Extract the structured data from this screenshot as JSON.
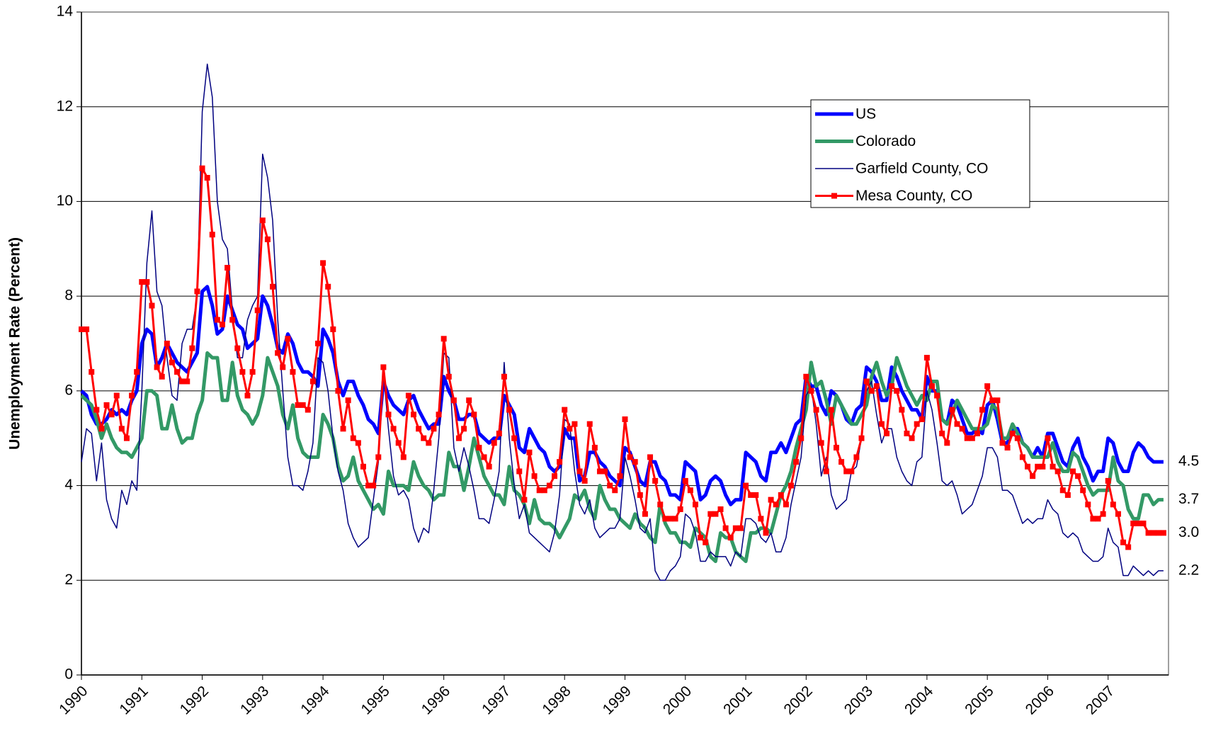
{
  "chart_data": {
    "type": "line",
    "ylabel": "Unemployment Rate (Percent)",
    "categories": [
      "1990",
      null,
      null,
      null,
      null,
      null,
      null,
      null,
      null,
      null,
      null,
      null,
      "1991",
      null,
      null,
      null,
      null,
      null,
      null,
      null,
      null,
      null,
      null,
      null,
      "1992",
      null,
      null,
      null,
      null,
      null,
      null,
      null,
      null,
      null,
      null,
      null,
      "1993",
      null,
      null,
      null,
      null,
      null,
      null,
      null,
      null,
      null,
      null,
      null,
      "1994",
      null,
      null,
      null,
      null,
      null,
      null,
      null,
      null,
      null,
      null,
      null,
      "1995",
      null,
      null,
      null,
      null,
      null,
      null,
      null,
      null,
      null,
      null,
      null,
      "1996",
      null,
      null,
      null,
      null,
      null,
      null,
      null,
      null,
      null,
      null,
      null,
      "1997",
      null,
      null,
      null,
      null,
      null,
      null,
      null,
      null,
      null,
      null,
      null,
      "1998",
      null,
      null,
      null,
      null,
      null,
      null,
      null,
      null,
      null,
      null,
      null,
      "1999",
      null,
      null,
      null,
      null,
      null,
      null,
      null,
      null,
      null,
      null,
      null,
      "2000",
      null,
      null,
      null,
      null,
      null,
      null,
      null,
      null,
      null,
      null,
      null,
      "2001",
      null,
      null,
      null,
      null,
      null,
      null,
      null,
      null,
      null,
      null,
      null,
      "2002",
      null,
      null,
      null,
      null,
      null,
      null,
      null,
      null,
      null,
      null,
      null,
      "2003",
      null,
      null,
      null,
      null,
      null,
      null,
      null,
      null,
      null,
      null,
      null,
      "2004",
      null,
      null,
      null,
      null,
      null,
      null,
      null,
      null,
      null,
      null,
      null,
      "2005",
      null,
      null,
      null,
      null,
      null,
      null,
      null,
      null,
      null,
      null,
      null,
      "2006",
      null,
      null,
      null,
      null,
      null,
      null,
      null,
      null,
      null,
      null,
      null,
      "2007",
      null,
      null,
      null,
      null,
      null,
      null,
      null,
      null,
      null,
      null,
      null
    ],
    "ylim": [
      0,
      14
    ],
    "yticks": [
      0,
      2,
      4,
      6,
      8,
      10,
      12,
      14
    ],
    "grid": true,
    "legend": "upper right",
    "series": [
      {
        "name": "US",
        "color": "#0000ff",
        "width": 5,
        "marker": false,
        "end_label": "4.5",
        "values": [
          6.0,
          5.9,
          5.5,
          5.3,
          5.3,
          5.4,
          5.6,
          5.5,
          5.6,
          5.5,
          5.8,
          6.0,
          7.0,
          7.3,
          7.2,
          6.5,
          6.7,
          7.0,
          6.8,
          6.6,
          6.5,
          6.4,
          6.6,
          6.8,
          8.1,
          8.2,
          7.8,
          7.2,
          7.3,
          8.0,
          7.7,
          7.4,
          7.3,
          6.9,
          7.0,
          7.1,
          8.0,
          7.8,
          7.4,
          6.9,
          6.8,
          7.2,
          7.0,
          6.6,
          6.4,
          6.4,
          6.3,
          6.1,
          7.3,
          7.1,
          6.8,
          6.2,
          5.9,
          6.2,
          6.2,
          5.9,
          5.7,
          5.4,
          5.3,
          5.1,
          6.2,
          5.9,
          5.7,
          5.6,
          5.5,
          5.8,
          5.9,
          5.6,
          5.4,
          5.2,
          5.3,
          5.3,
          6.3,
          6.0,
          5.8,
          5.4,
          5.4,
          5.5,
          5.5,
          5.1,
          5.0,
          4.9,
          5.0,
          5.0,
          5.9,
          5.7,
          5.5,
          4.8,
          4.7,
          5.2,
          5.0,
          4.8,
          4.7,
          4.4,
          4.3,
          4.4,
          5.2,
          5.0,
          5.0,
          4.1,
          4.2,
          4.7,
          4.7,
          4.5,
          4.4,
          4.2,
          4.1,
          4.0,
          4.8,
          4.7,
          4.4,
          4.1,
          4.0,
          4.5,
          4.5,
          4.2,
          4.1,
          3.8,
          3.8,
          3.7,
          4.5,
          4.4,
          4.3,
          3.7,
          3.8,
          4.1,
          4.2,
          4.1,
          3.8,
          3.6,
          3.7,
          3.7,
          4.7,
          4.6,
          4.5,
          4.2,
          4.1,
          4.7,
          4.7,
          4.9,
          4.7,
          5.0,
          5.3,
          5.4,
          6.3,
          6.1,
          6.1,
          5.7,
          5.5,
          6.0,
          5.9,
          5.7,
          5.4,
          5.3,
          5.6,
          5.7,
          6.5,
          6.4,
          6.2,
          5.8,
          5.8,
          6.5,
          6.3,
          6.0,
          5.8,
          5.6,
          5.6,
          5.4,
          6.3,
          6.0,
          6.0,
          5.4,
          5.3,
          5.8,
          5.7,
          5.4,
          5.1,
          5.1,
          5.2,
          5.1,
          5.7,
          5.8,
          5.4,
          4.9,
          4.9,
          5.2,
          5.2,
          4.9,
          4.8,
          4.6,
          4.8,
          4.6,
          5.1,
          5.1,
          4.8,
          4.5,
          4.4,
          4.8,
          5.0,
          4.6,
          4.4,
          4.1,
          4.3,
          4.3,
          5.0,
          4.9,
          4.5,
          4.3,
          4.3,
          4.7,
          4.9,
          4.8,
          4.6,
          4.5,
          4.5,
          4.5
        ]
      },
      {
        "name": "Colorado",
        "color": "#339966",
        "width": 5,
        "marker": false,
        "end_label": "3.7",
        "values": [
          5.9,
          5.8,
          5.7,
          5.4,
          5.0,
          5.3,
          5.0,
          4.8,
          4.7,
          4.7,
          4.6,
          4.8,
          5.0,
          6.0,
          6.0,
          5.9,
          5.2,
          5.2,
          5.7,
          5.2,
          4.9,
          5.0,
          5.0,
          5.5,
          5.8,
          6.8,
          6.7,
          6.7,
          5.8,
          5.8,
          6.6,
          5.9,
          5.6,
          5.5,
          5.3,
          5.5,
          5.9,
          6.7,
          6.4,
          6.1,
          5.5,
          5.2,
          5.7,
          5.0,
          4.7,
          4.6,
          4.6,
          4.6,
          5.5,
          5.3,
          5.0,
          4.4,
          4.1,
          4.2,
          4.6,
          4.1,
          3.9,
          3.7,
          3.5,
          3.6,
          3.4,
          4.3,
          4.0,
          4.0,
          4.0,
          3.9,
          4.5,
          4.2,
          4.0,
          3.9,
          3.7,
          3.8,
          3.8,
          4.7,
          4.4,
          4.4,
          3.9,
          4.4,
          5.0,
          4.6,
          4.2,
          4.0,
          3.8,
          3.8,
          3.6,
          4.4,
          3.9,
          3.8,
          3.6,
          3.2,
          3.7,
          3.3,
          3.2,
          3.2,
          3.1,
          2.9,
          3.1,
          3.3,
          3.8,
          3.7,
          3.9,
          3.5,
          3.3,
          4.0,
          3.7,
          3.5,
          3.5,
          3.3,
          3.2,
          3.1,
          3.4,
          3.2,
          3.1,
          2.9,
          2.8,
          3.6,
          3.2,
          3.0,
          3.0,
          2.8,
          2.8,
          2.7,
          3.1,
          3.0,
          2.9,
          2.5,
          2.4,
          3.0,
          2.9,
          2.9,
          2.6,
          2.5,
          2.4,
          3.0,
          3.0,
          3.1,
          3.1,
          3.0,
          3.4,
          3.8,
          4.0,
          4.3,
          4.8,
          5.2,
          5.6,
          6.6,
          6.1,
          6.2,
          5.8,
          5.3,
          5.9,
          5.7,
          5.5,
          5.3,
          5.3,
          5.5,
          5.7,
          6.3,
          6.6,
          6.2,
          5.9,
          6.1,
          6.7,
          6.4,
          6.1,
          5.9,
          5.7,
          5.9,
          5.8,
          6.2,
          6.2,
          5.4,
          5.3,
          5.5,
          5.8,
          5.6,
          5.4,
          5.2,
          5.2,
          5.2,
          5.3,
          5.7,
          5.6,
          5.0,
          5.0,
          5.3,
          5.1,
          4.9,
          4.8,
          4.6,
          4.6,
          4.6,
          4.6,
          4.9,
          4.5,
          4.3,
          4.3,
          4.7,
          4.6,
          4.3,
          4.0,
          3.8,
          3.9,
          3.9,
          3.9,
          4.6,
          4.1,
          4.0,
          3.5,
          3.3,
          3.3,
          3.8,
          3.8,
          3.6,
          3.7,
          3.7
        ]
      },
      {
        "name": "Garfield County, CO",
        "color": "#000080",
        "width": 1.5,
        "marker": false,
        "end_label": "2.2",
        "values": [
          4.5,
          5.2,
          5.1,
          4.1,
          4.9,
          3.7,
          3.3,
          3.1,
          3.9,
          3.6,
          4.1,
          3.9,
          6.0,
          8.7,
          9.8,
          8.1,
          7.8,
          6.7,
          5.9,
          5.8,
          7.0,
          7.3,
          7.3,
          8.0,
          11.9,
          12.9,
          12.2,
          10.0,
          9.2,
          9.0,
          7.7,
          6.7,
          6.7,
          7.5,
          7.8,
          8.0,
          11.0,
          10.5,
          9.6,
          7.5,
          6.0,
          4.6,
          4.0,
          4.0,
          3.9,
          4.3,
          4.9,
          6.7,
          6.6,
          6.0,
          5.0,
          4.3,
          3.9,
          3.2,
          2.9,
          2.7,
          2.8,
          2.9,
          3.7,
          4.5,
          6.4,
          5.2,
          4.2,
          3.8,
          3.9,
          3.7,
          3.1,
          2.8,
          3.1,
          3.0,
          3.9,
          5.0,
          6.8,
          6.7,
          4.8,
          4.3,
          4.8,
          4.4,
          3.9,
          3.3,
          3.3,
          3.2,
          3.7,
          4.3,
          6.6,
          5.0,
          4.0,
          3.3,
          3.6,
          3.0,
          2.9,
          2.8,
          2.7,
          2.6,
          3.0,
          3.8,
          5.4,
          5.3,
          4.3,
          3.6,
          3.4,
          3.7,
          3.1,
          2.9,
          3.0,
          3.1,
          3.1,
          3.3,
          4.6,
          4.2,
          3.7,
          3.1,
          3.0,
          3.3,
          2.2,
          2.0,
          2.0,
          2.2,
          2.3,
          2.5,
          3.4,
          3.3,
          3.0,
          2.4,
          2.4,
          2.6,
          2.5,
          2.5,
          2.5,
          2.3,
          2.6,
          2.5,
          3.3,
          3.3,
          3.2,
          2.9,
          2.8,
          3.0,
          2.6,
          2.6,
          2.9,
          3.6,
          4.1,
          4.6,
          5.9,
          6.1,
          5.3,
          4.2,
          4.6,
          3.8,
          3.5,
          3.6,
          3.7,
          4.3,
          4.4,
          5.0,
          6.0,
          6.2,
          5.5,
          4.9,
          5.2,
          5.2,
          4.6,
          4.3,
          4.1,
          4.0,
          4.5,
          4.6,
          6.0,
          5.6,
          4.9,
          4.1,
          4.0,
          4.1,
          3.8,
          3.4,
          3.5,
          3.6,
          3.9,
          4.2,
          4.8,
          4.8,
          4.6,
          3.9,
          3.9,
          3.8,
          3.5,
          3.2,
          3.3,
          3.2,
          3.3,
          3.3,
          3.7,
          3.5,
          3.4,
          3.0,
          2.9,
          3.0,
          2.9,
          2.6,
          2.5,
          2.4,
          2.4,
          2.5,
          3.1,
          2.8,
          2.7,
          2.1,
          2.1,
          2.3,
          2.2,
          2.1,
          2.2,
          2.1,
          2.2,
          2.2
        ]
      },
      {
        "name": "Mesa County, CO",
        "color": "#ff0000",
        "width": 3,
        "marker": true,
        "end_label": "3.0",
        "values": [
          7.3,
          7.3,
          6.4,
          5.6,
          5.2,
          5.7,
          5.5,
          5.9,
          5.2,
          5.0,
          5.9,
          6.4,
          8.3,
          8.3,
          7.8,
          6.5,
          6.3,
          7.0,
          6.6,
          6.4,
          6.2,
          6.2,
          6.9,
          8.1,
          10.7,
          10.5,
          9.3,
          7.5,
          7.4,
          8.6,
          7.5,
          6.9,
          6.4,
          5.9,
          6.4,
          7.7,
          9.6,
          9.2,
          8.2,
          6.8,
          6.5,
          7.1,
          6.4,
          5.7,
          5.7,
          5.6,
          6.2,
          7.0,
          8.7,
          8.2,
          7.3,
          6.0,
          5.2,
          5.8,
          5.0,
          4.9,
          4.4,
          4.0,
          4.0,
          4.6,
          6.5,
          5.5,
          5.2,
          4.9,
          4.6,
          5.9,
          5.5,
          5.2,
          5.0,
          4.9,
          5.2,
          5.5,
          7.1,
          6.3,
          5.8,
          5.0,
          5.2,
          5.8,
          5.5,
          4.8,
          4.6,
          4.4,
          4.9,
          5.1,
          6.3,
          5.6,
          5.0,
          4.3,
          3.7,
          4.7,
          4.2,
          3.9,
          3.9,
          4.0,
          4.2,
          4.5,
          5.6,
          5.2,
          5.3,
          4.3,
          4.1,
          5.3,
          4.8,
          4.3,
          4.3,
          4.0,
          3.9,
          4.2,
          5.4,
          4.6,
          4.5,
          3.8,
          3.4,
          4.6,
          4.1,
          3.6,
          3.3,
          3.3,
          3.3,
          3.5,
          4.1,
          3.9,
          3.6,
          2.9,
          2.8,
          3.4,
          3.4,
          3.5,
          3.1,
          2.9,
          3.1,
          3.1,
          4.0,
          3.8,
          3.8,
          3.3,
          3.0,
          3.7,
          3.6,
          3.8,
          3.6,
          4.0,
          4.5,
          5.0,
          6.3,
          6.0,
          5.6,
          4.9,
          4.3,
          5.6,
          4.8,
          4.5,
          4.3,
          4.3,
          4.6,
          5.0,
          6.2,
          6.0,
          6.1,
          5.3,
          5.1,
          6.1,
          6.0,
          5.6,
          5.1,
          5.0,
          5.3,
          5.4,
          6.7,
          6.1,
          5.9,
          5.1,
          4.9,
          5.6,
          5.3,
          5.2,
          5.0,
          5.0,
          5.1,
          5.6,
          6.1,
          5.8,
          5.8,
          4.9,
          4.8,
          5.1,
          5.0,
          4.6,
          4.4,
          4.2,
          4.4,
          4.4,
          5.0,
          4.4,
          4.3,
          3.9,
          3.8,
          4.3,
          4.2,
          3.9,
          3.6,
          3.3,
          3.3,
          3.4,
          4.1,
          3.6,
          3.4,
          2.8,
          2.7,
          3.2,
          3.2,
          3.2,
          3.0,
          3.0,
          3.0,
          3.0
        ]
      }
    ]
  }
}
